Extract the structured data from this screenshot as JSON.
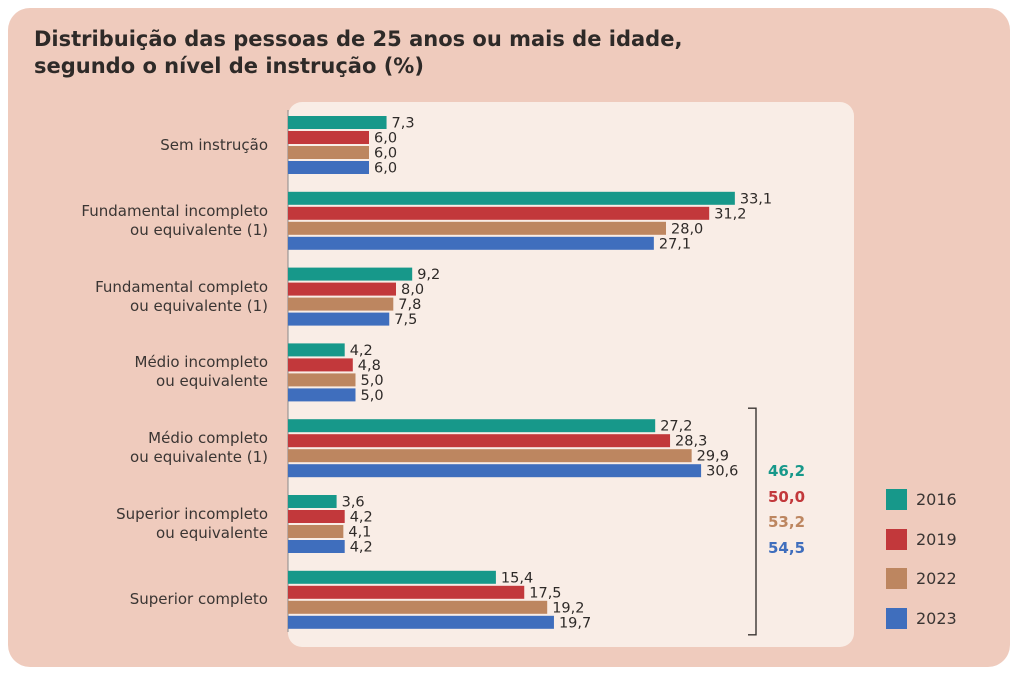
{
  "title_line1": "Distribuição das pessoas de 25 anos ou mais de idade,",
  "title_line2": "segundo o nível de instrução (%)",
  "colors": {
    "2016": "#17988a",
    "2019": "#c2383b",
    "2022": "#bd8660",
    "2023": "#3f6ebd"
  },
  "chart_data": {
    "type": "bar",
    "orientation": "horizontal",
    "title": "Distribuição das pessoas de 25 anos ou mais de idade, segundo o nível de instrução (%)",
    "categories": [
      [
        "Sem instrução"
      ],
      [
        "Fundamental incompleto",
        "ou equivalente (1)"
      ],
      [
        "Fundamental completo",
        "ou equivalente (1)"
      ],
      [
        "Médio incompleto",
        "ou equivalente"
      ],
      [
        "Médio completo",
        "ou equivalente (1)"
      ],
      [
        "Superior incompleto",
        "ou equivalente"
      ],
      [
        "Superior completo"
      ]
    ],
    "series": [
      {
        "name": "2016",
        "values": [
          7.3,
          33.1,
          9.2,
          4.2,
          27.2,
          3.6,
          15.4
        ],
        "labels": [
          "7,3",
          "33,1",
          "9,2",
          "4,2",
          "27,2",
          "3,6",
          "15,4"
        ]
      },
      {
        "name": "2019",
        "values": [
          6.0,
          31.2,
          8.0,
          4.8,
          28.3,
          4.2,
          17.5
        ],
        "labels": [
          "6,0",
          "31,2",
          "8,0",
          "4,8",
          "28,3",
          "4,2",
          "17,5"
        ]
      },
      {
        "name": "2022",
        "values": [
          6.0,
          28.0,
          7.8,
          5.0,
          29.9,
          4.1,
          19.2
        ],
        "labels": [
          "6,0",
          "28,0",
          "7,8",
          "5,0",
          "29,9",
          "4,1",
          "19,2"
        ]
      },
      {
        "name": "2023",
        "values": [
          6.0,
          27.1,
          7.5,
          5.0,
          30.6,
          4.2,
          19.7
        ],
        "labels": [
          "6,0",
          "27,1",
          "7,5",
          "5,0",
          "30,6",
          "4,2",
          "19,7"
        ]
      }
    ],
    "bracket_totals": [
      {
        "series": "2016",
        "label": "46,2"
      },
      {
        "series": "2019",
        "label": "50,0"
      },
      {
        "series": "2022",
        "label": "53,2"
      },
      {
        "series": "2023",
        "label": "54,5"
      }
    ],
    "bracket_covers_categories": [
      4,
      6
    ],
    "legend": [
      "2016",
      "2019",
      "2022",
      "2023"
    ],
    "legend_position": "right",
    "grid": false
  }
}
